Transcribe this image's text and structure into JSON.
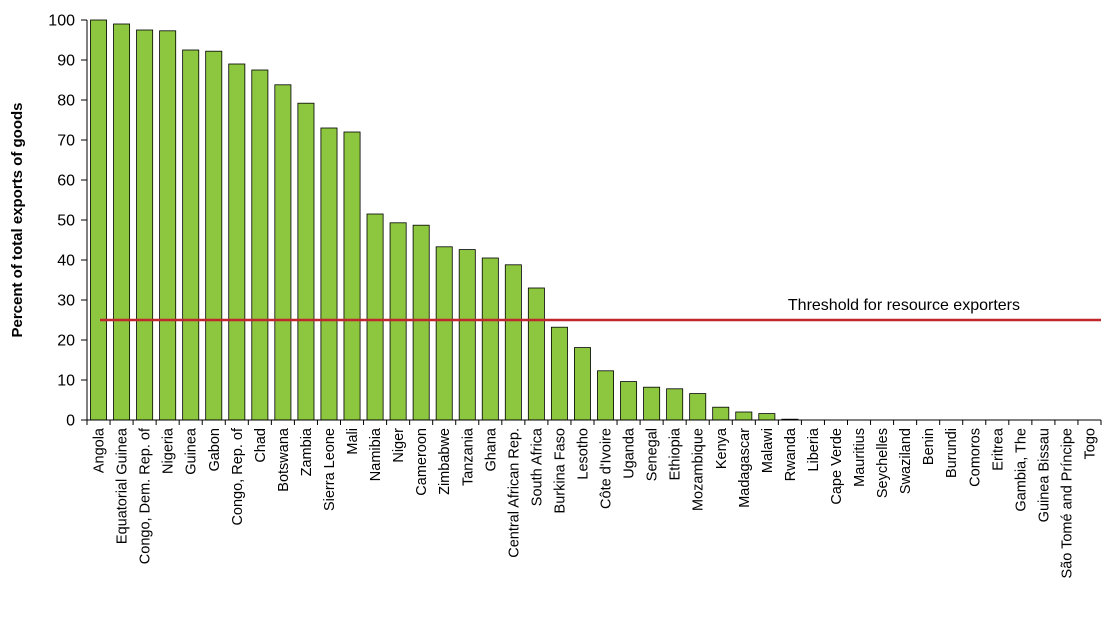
{
  "chart_data": {
    "type": "bar",
    "title": "",
    "xlabel": "",
    "ylabel": "Percent of total exports of goods",
    "ylim": [
      0,
      100
    ],
    "yticks": [
      0,
      10,
      20,
      30,
      40,
      50,
      60,
      70,
      80,
      90,
      100
    ],
    "grid": false,
    "categories": [
      "Angola",
      "Equatorial Guinea",
      "Congo, Dem. Rep. of",
      "Nigeria",
      "Guinea",
      "Gabon",
      "Congo, Rep. of",
      "Chad",
      "Botswana",
      "Zambia",
      "Sierra Leone",
      "Mali",
      "Namibia",
      "Niger",
      "Cameroon",
      "Zimbabwe",
      "Tanzania",
      "Ghana",
      "Central African Rep.",
      "South Africa",
      "Burkina Faso",
      "Lesotho",
      "Côte d'Ivoire",
      "Uganda",
      "Senegal",
      "Ethiopia",
      "Mozambique",
      "Kenya",
      "Madagascar",
      "Malawi",
      "Rwanda",
      "Liberia",
      "Cape Verde",
      "Mauritius",
      "Seychelles",
      "Swaziland",
      "Benin",
      "Burundi",
      "Comoros",
      "Eritrea",
      "Gambia, The",
      "Guinea Bissau",
      "São Tomé and Príncipe",
      "Togo"
    ],
    "values": [
      100,
      99,
      97.5,
      97.3,
      92.5,
      92.2,
      89,
      87.5,
      83.8,
      79.2,
      73,
      72,
      51.5,
      49.3,
      48.7,
      43.3,
      42.6,
      40.5,
      38.8,
      33,
      23.2,
      18.1,
      12.3,
      9.6,
      8.2,
      7.8,
      6.6,
      3.2,
      2.0,
      1.6,
      0.2,
      0.1,
      0,
      0,
      0,
      0,
      0,
      0,
      0,
      0,
      0,
      0,
      0,
      0
    ],
    "bar_color": "#8dc63f",
    "bar_edge_color": "#000000",
    "threshold": {
      "value": 25,
      "label": "Threshold for resource exporters",
      "color": "#c0272d"
    }
  }
}
